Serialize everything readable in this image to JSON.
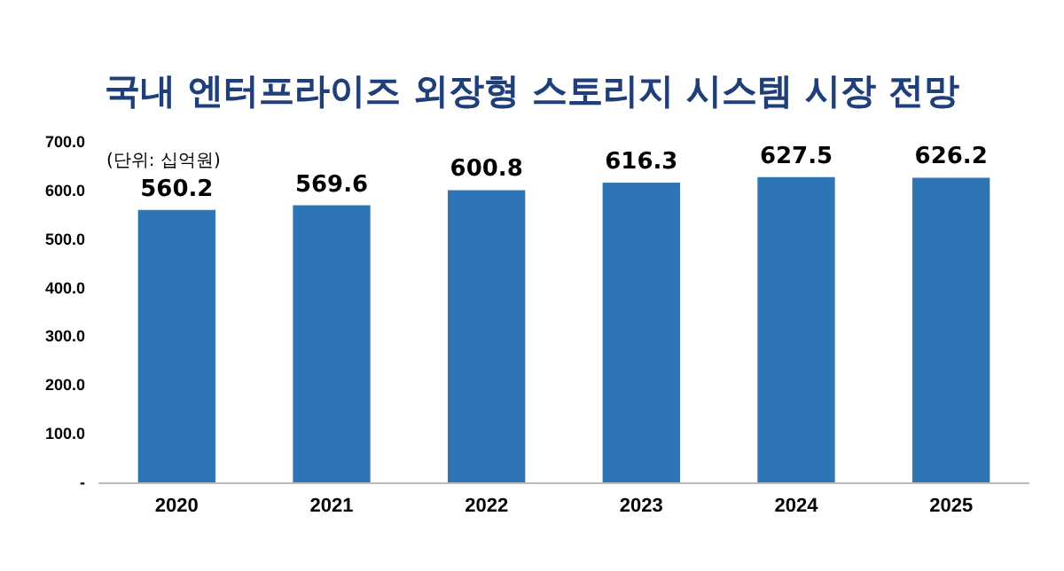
{
  "chart_data": {
    "type": "bar",
    "title": "국내 엔터프라이즈 외장형 스토리지 시스템 시장 전망",
    "annotations": [
      "(단위: 십억원)"
    ],
    "categories": [
      "2020",
      "2021",
      "2022",
      "2023",
      "2024",
      "2025"
    ],
    "values": [
      560.2,
      569.6,
      600.8,
      616.3,
      627.5,
      626.2
    ],
    "color": "#2e75b6",
    "ylim": [
      0,
      700
    ],
    "yticks": [
      {
        "value": 0,
        "label": "-"
      },
      {
        "value": 100,
        "label": "100.0"
      },
      {
        "value": 200,
        "label": "200.0"
      },
      {
        "value": 300,
        "label": "300.0"
      },
      {
        "value": 400,
        "label": "400.0"
      },
      {
        "value": 500,
        "label": "500.0"
      },
      {
        "value": 600,
        "label": "600.0"
      },
      {
        "value": 700,
        "label": "700.0"
      }
    ],
    "data_labels": true
  }
}
